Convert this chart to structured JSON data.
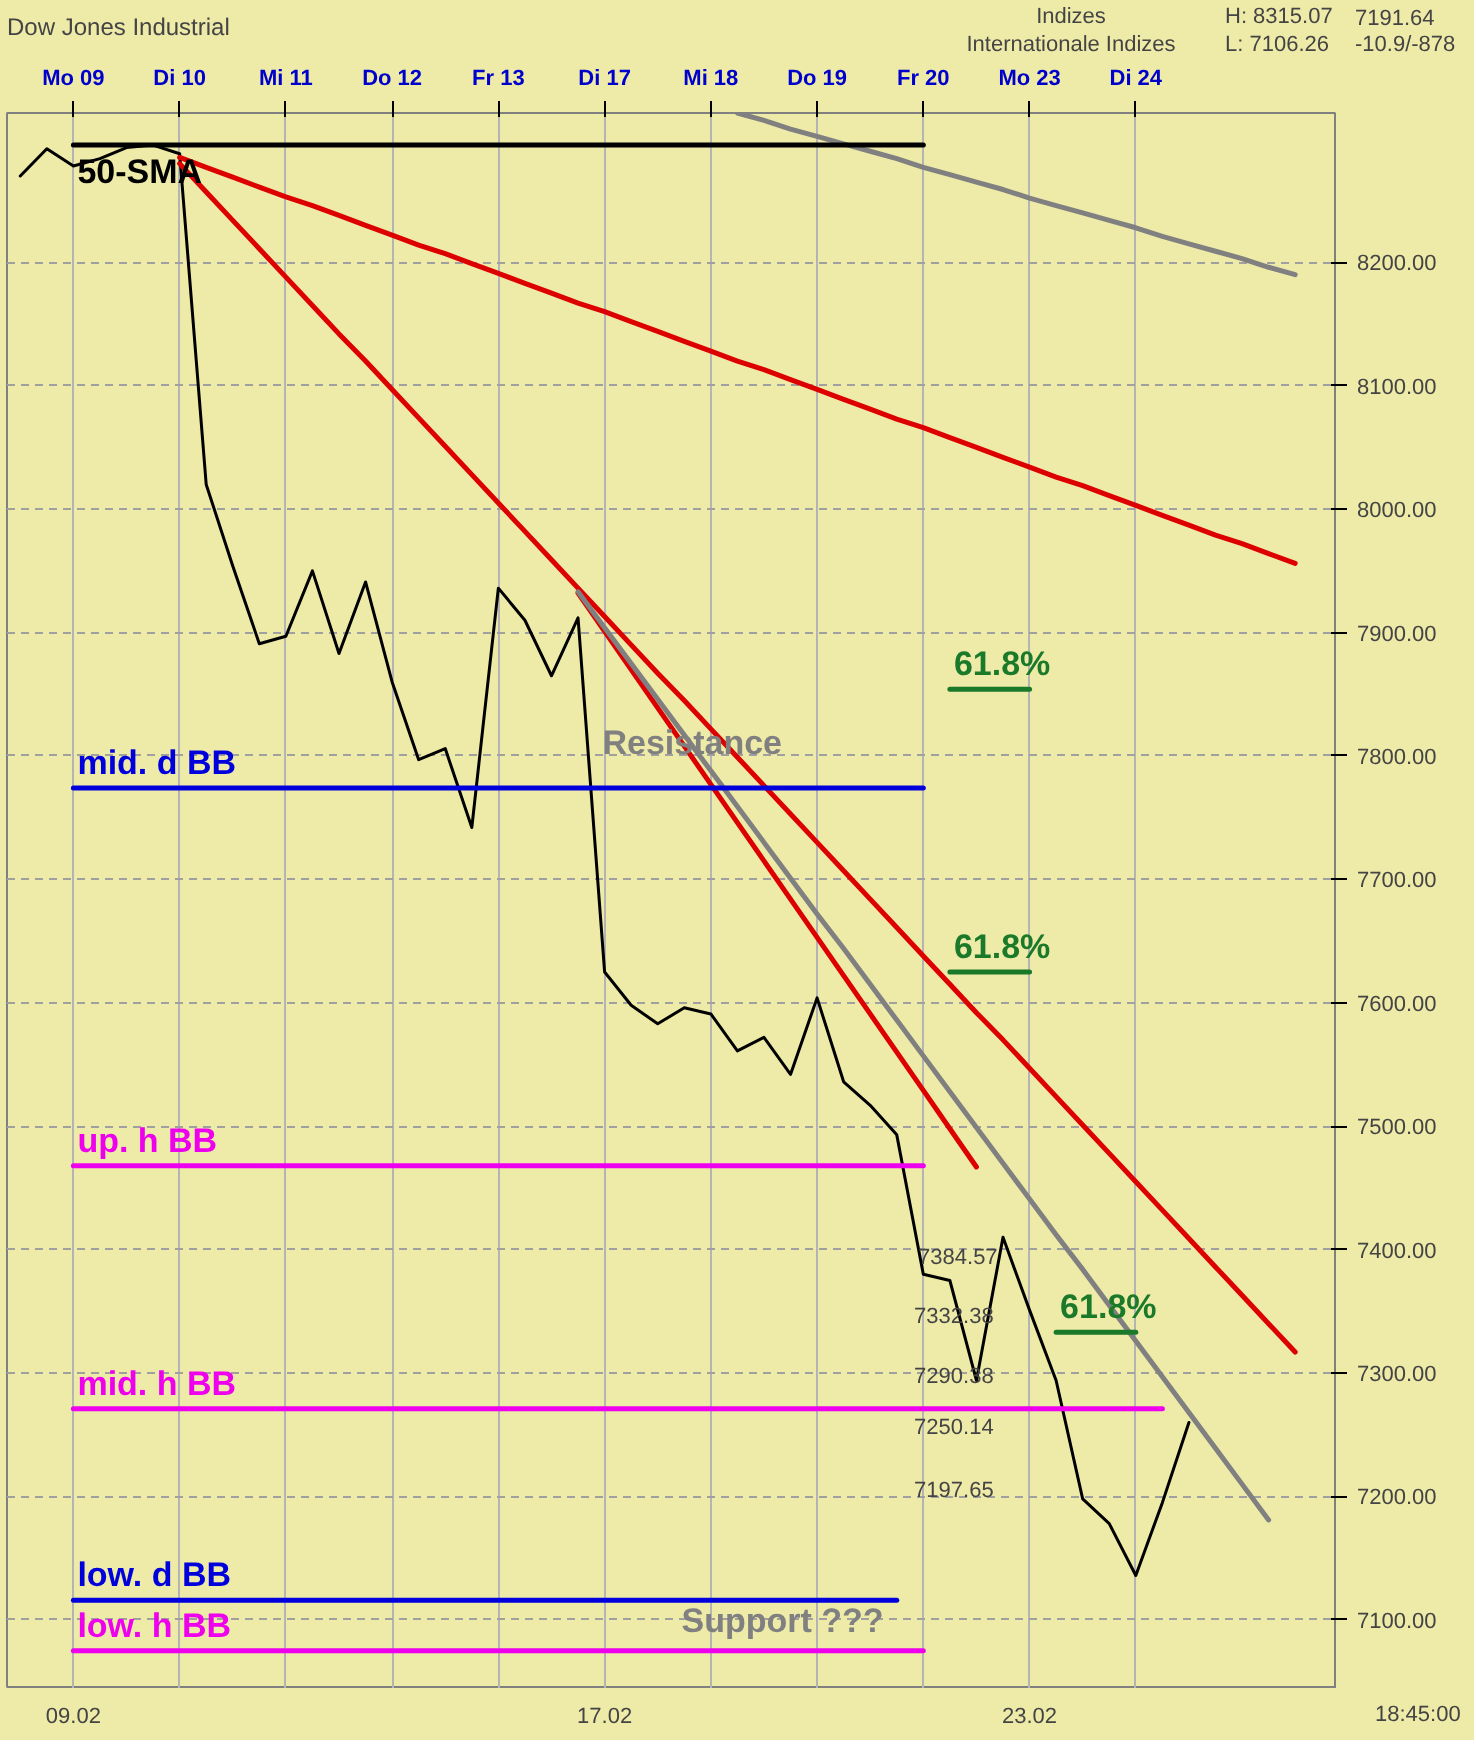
{
  "chart_data": {
    "type": "line",
    "title": "Dow Jones Industrial",
    "annotations": [
      "Indizes",
      "Internationale Indizes",
      "H: 8315.07",
      "L: 7106.26",
      "7191.64",
      "-10.9/-878",
      "09.02",
      "17.02",
      "23.02",
      "18:45:00",
      "7384.57",
      "7332.38",
      "7290.38",
      "7250.14",
      "7197.65",
      "Support ???",
      "Resistance"
    ],
    "categories": [
      null,
      null,
      "Mo 09",
      null,
      null,
      null,
      "Di 10",
      null,
      null,
      null,
      "Mi 11",
      null,
      null,
      null,
      "Do 12",
      null,
      null,
      null,
      "Fr 13",
      null,
      null,
      null,
      "Di 17",
      null,
      null,
      null,
      "Mi 18",
      null,
      null,
      null,
      "Do 19",
      null,
      null,
      null,
      "Fr 20",
      null,
      null,
      null,
      "Mo 23",
      null,
      null,
      null,
      "Di 24",
      null,
      null,
      null,
      null,
      null,
      null,
      null
    ],
    "ylim": [
      7044,
      8321
    ],
    "yticks": [
      {
        "value": 7100,
        "label": "7100.00"
      },
      {
        "value": 7200,
        "label": "7200.00"
      },
      {
        "value": 7300,
        "label": "7300.00"
      },
      {
        "value": 7400,
        "label": "7400.00"
      },
      {
        "value": 7500,
        "label": "7500.00"
      },
      {
        "value": 7600,
        "label": "7600.00"
      },
      {
        "value": 7700,
        "label": "7700.00"
      },
      {
        "value": 7800,
        "label": "7800.00"
      },
      {
        "value": 7900,
        "label": "7900.00"
      },
      {
        "value": 8000,
        "label": "8000.00"
      },
      {
        "value": 8100,
        "label": "8100.00"
      },
      {
        "value": 8200,
        "label": "8200.00"
      }
    ],
    "grid": true,
    "series": [
      {
        "color": "#000000",
        "values": [
          8270,
          8292,
          8278,
          8284,
          8293,
          8295,
          8288,
          8020,
          7954,
          7891,
          7897,
          7950,
          7883,
          7941,
          7860,
          7797,
          7806,
          7742,
          7936,
          7910,
          7865,
          7912,
          7625,
          7598,
          7583,
          7596,
          7591,
          7561,
          7572,
          7542,
          7604,
          7536,
          7517,
          7493,
          7380,
          7375,
          7294,
          7410,
          7351,
          7294,
          7198,
          7178,
          7136,
          7195,
          7260,
          null,
          null,
          null,
          null,
          null
        ]
      },
      {
        "color": "#dd0000",
        "values": [
          null,
          null,
          null,
          null,
          null,
          null,
          8280,
          8257,
          8234,
          8211,
          8188,
          8165,
          8142,
          8120,
          8097,
          8074,
          8051,
          8028,
          8005,
          7982,
          7959,
          7936,
          7913,
          7890,
          7867,
          7845,
          7822,
          7799,
          7776,
          7753,
          7730,
          7707,
          7684,
          7661,
          7638,
          7615,
          7592,
          7570,
          7547,
          7524,
          7501,
          7478,
          7455,
          7432,
          7409,
          7386,
          7363,
          7340,
          7317,
          null
        ]
      },
      {
        "color": "#dd0000",
        "values": [
          null,
          null,
          null,
          null,
          null,
          null,
          8285,
          8277,
          8269,
          8261,
          8253,
          8246,
          8238,
          8230,
          8222,
          8214,
          8207,
          8199,
          8191,
          8183,
          8175,
          8167,
          8160,
          8152,
          8144,
          8136,
          8128,
          8120,
          8113,
          8105,
          8097,
          8089,
          8081,
          8073,
          8066,
          8058,
          8050,
          8042,
          8034,
          8026,
          8019,
          8011,
          8003,
          7995,
          7987,
          7979,
          7972,
          7964,
          7956,
          null
        ]
      },
      {
        "color": "#808080",
        "values": [
          null,
          null,
          null,
          null,
          null,
          null,
          null,
          null,
          null,
          null,
          null,
          null,
          null,
          null,
          null,
          null,
          null,
          null,
          null,
          null,
          null,
          null,
          null,
          null,
          null,
          null,
          null,
          8321,
          8315,
          8308,
          8302,
          8296,
          8290,
          8284,
          8277,
          8271,
          8265,
          8259,
          8252,
          8246,
          8240,
          8234,
          8228,
          8221,
          8215,
          8209,
          8203,
          8196,
          8190,
          null
        ]
      },
      {
        "color": "#dd0000",
        "values": [
          null,
          null,
          null,
          null,
          null,
          null,
          null,
          null,
          null,
          null,
          null,
          null,
          null,
          null,
          null,
          null,
          null,
          null,
          null,
          null,
          null,
          7932,
          7901,
          7870,
          7839,
          7808,
          7777,
          7746,
          7715,
          7684,
          7653,
          7622,
          7591,
          7560,
          7529,
          7498,
          7467,
          null,
          null,
          null,
          null,
          null,
          null,
          null,
          null,
          null,
          null,
          null,
          null,
          null
        ]
      },
      {
        "color": "#808080",
        "values": [
          null,
          null,
          null,
          null,
          null,
          null,
          null,
          null,
          null,
          null,
          null,
          null,
          null,
          null,
          null,
          null,
          null,
          null,
          null,
          null,
          null,
          7933,
          7904,
          7875,
          7846,
          7817,
          7788,
          7759,
          7730,
          7701,
          7672,
          7644,
          7615,
          7586,
          7557,
          7528,
          7499,
          7470,
          7441,
          7412,
          7384,
          7355,
          7326,
          7297,
          7268,
          7239,
          7210,
          7181,
          null,
          null
        ]
      },
      {
        "name": "50-SMA",
        "color": "#000000",
        "values": [
          null,
          null,
          8295,
          8295,
          8295,
          8295,
          8295,
          8295,
          8295,
          8295,
          8295,
          8295,
          8295,
          8295,
          8295,
          8295,
          8295,
          8295,
          8295,
          8295,
          8295,
          8295,
          8295,
          8295,
          8295,
          8295,
          8295,
          8295,
          8295,
          8295,
          8295,
          8295,
          8295,
          8295,
          8295,
          null,
          null,
          null,
          null,
          null,
          null,
          null,
          null,
          null,
          null,
          null,
          null,
          null,
          null,
          null
        ]
      },
      {
        "name": "mid. d BB",
        "color": "#0000dd",
        "values": [
          null,
          null,
          7774,
          7774,
          7774,
          7774,
          7774,
          7774,
          7774,
          7774,
          7774,
          7774,
          7774,
          7774,
          7774,
          7774,
          7774,
          7774,
          7774,
          7774,
          7774,
          7774,
          7774,
          7774,
          7774,
          7774,
          7774,
          7774,
          7774,
          7774,
          7774,
          7774,
          7774,
          7774,
          7774,
          null,
          null,
          null,
          null,
          null,
          null,
          null,
          null,
          null,
          null,
          null,
          null,
          null,
          null,
          null
        ]
      },
      {
        "name": "up. h BB",
        "color": "#ee00ee",
        "values": [
          null,
          null,
          7468,
          7468,
          7468,
          7468,
          7468,
          7468,
          7468,
          7468,
          7468,
          7468,
          7468,
          7468,
          7468,
          7468,
          7468,
          7468,
          7468,
          7468,
          7468,
          7468,
          7468,
          7468,
          7468,
          7468,
          7468,
          7468,
          7468,
          7468,
          7468,
          7468,
          7468,
          7468,
          7468,
          null,
          null,
          null,
          null,
          null,
          null,
          null,
          null,
          null,
          null,
          null,
          null,
          null,
          null,
          null
        ]
      },
      {
        "name": "mid. h BB",
        "color": "#ee00ee",
        "values": [
          null,
          null,
          7271,
          7271,
          7271,
          7271,
          7271,
          7271,
          7271,
          7271,
          7271,
          7271,
          7271,
          7271,
          7271,
          7271,
          7271,
          7271,
          7271,
          7271,
          7271,
          7271,
          7271,
          7271,
          7271,
          7271,
          7271,
          7271,
          7271,
          7271,
          7271,
          7271,
          7271,
          7271,
          7271,
          7271,
          7271,
          7271,
          7271,
          7271,
          7271,
          7271,
          7271,
          7271,
          null,
          null,
          null,
          null,
          null,
          null
        ]
      },
      {
        "name": "low. d BB",
        "color": "#0000dd",
        "values": [
          null,
          null,
          7116,
          7116,
          7116,
          7116,
          7116,
          7116,
          7116,
          7116,
          7116,
          7116,
          7116,
          7116,
          7116,
          7116,
          7116,
          7116,
          7116,
          7116,
          7116,
          7116,
          7116,
          7116,
          7116,
          7116,
          7116,
          7116,
          7116,
          7116,
          7116,
          7116,
          7116,
          7116,
          null,
          null,
          null,
          null,
          null,
          null,
          null,
          null,
          null,
          null,
          null,
          null,
          null,
          null,
          null,
          null
        ]
      },
      {
        "name": "low. h BB",
        "color": "#ee00ee",
        "values": [
          null,
          null,
          7075,
          7075,
          7075,
          7075,
          7075,
          7075,
          7075,
          7075,
          7075,
          7075,
          7075,
          7075,
          7075,
          7075,
          7075,
          7075,
          7075,
          7075,
          7075,
          7075,
          7075,
          7075,
          7075,
          7075,
          7075,
          7075,
          7075,
          7075,
          7075,
          7075,
          7075,
          7075,
          7075,
          null,
          null,
          null,
          null,
          null,
          null,
          null,
          null,
          null,
          null,
          null,
          null,
          null,
          null,
          null
        ]
      },
      {
        "name": "61.8%",
        "color": "#1a7a2a",
        "values": [
          null,
          null,
          null,
          null,
          null,
          null,
          null,
          null,
          null,
          null,
          null,
          null,
          null,
          null,
          null,
          null,
          null,
          null,
          null,
          null,
          null,
          null,
          null,
          null,
          null,
          null,
          null,
          null,
          null,
          null,
          null,
          null,
          null,
          null,
          null,
          7854,
          7854,
          7854,
          7854,
          null,
          null,
          null,
          null,
          null,
          null,
          null,
          null,
          null,
          null,
          null
        ]
      },
      {
        "name": "61.8%",
        "color": "#1a7a2a",
        "values": [
          null,
          null,
          null,
          null,
          null,
          null,
          null,
          null,
          null,
          null,
          null,
          null,
          null,
          null,
          null,
          null,
          null,
          null,
          null,
          null,
          null,
          null,
          null,
          null,
          null,
          null,
          null,
          null,
          null,
          null,
          null,
          null,
          null,
          null,
          null,
          7625,
          7625,
          7625,
          7625,
          null,
          null,
          null,
          null,
          null,
          null,
          null,
          null,
          null,
          null,
          null
        ]
      },
      {
        "name": "61.8%",
        "color": "#1a7a2a",
        "values": [
          null,
          null,
          null,
          null,
          null,
          null,
          null,
          null,
          null,
          null,
          null,
          null,
          null,
          null,
          null,
          null,
          null,
          null,
          null,
          null,
          null,
          null,
          null,
          null,
          null,
          null,
          null,
          null,
          null,
          null,
          null,
          null,
          null,
          null,
          null,
          null,
          null,
          null,
          null,
          7333,
          7333,
          7333,
          7333,
          null,
          null,
          null,
          null,
          null,
          null,
          null
        ]
      }
    ]
  }
}
